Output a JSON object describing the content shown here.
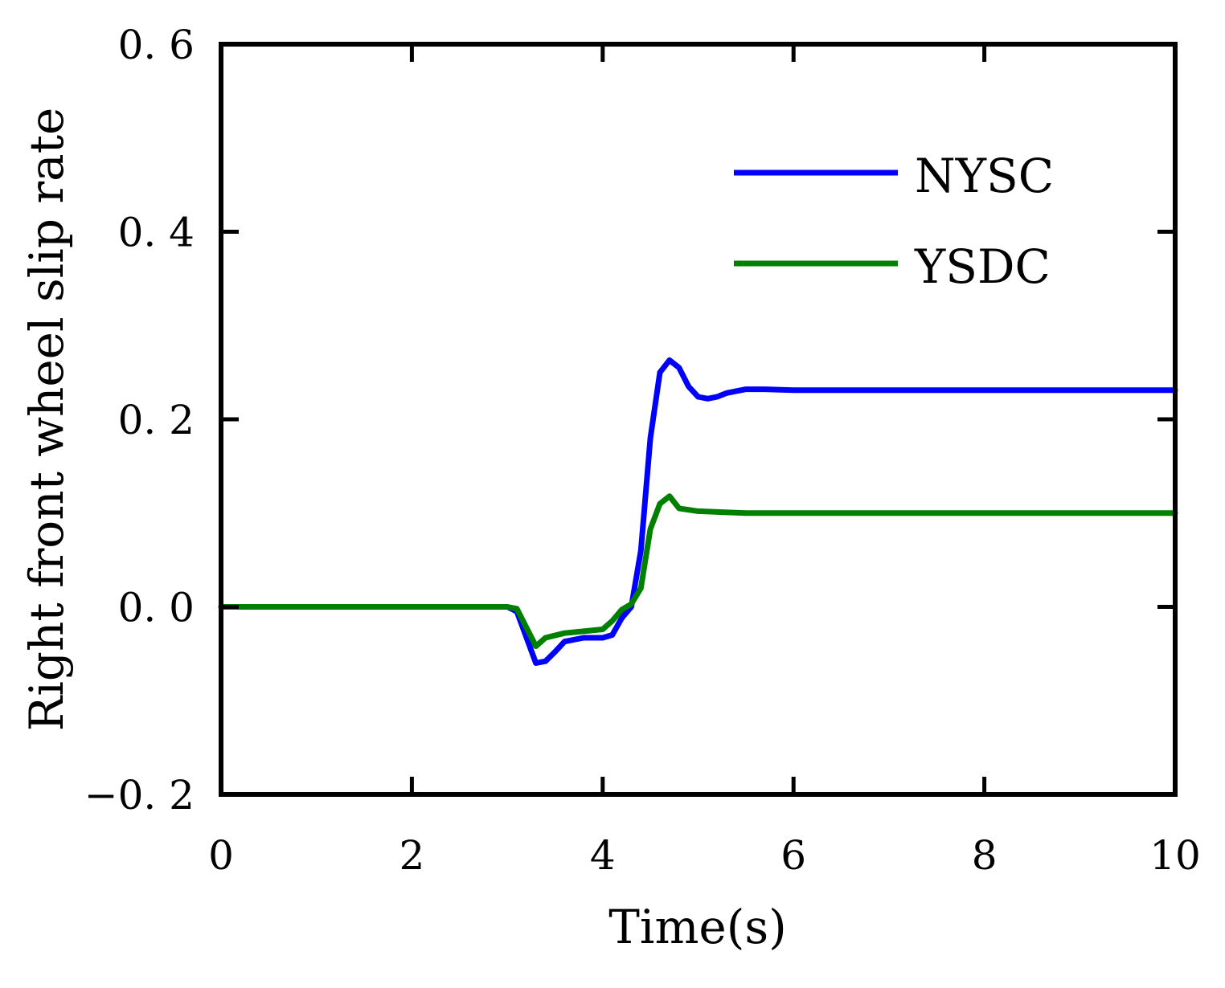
{
  "chart_data": {
    "type": "line",
    "title": "",
    "xlabel": "Time(s)",
    "ylabel": "Right front wheel slip rate",
    "xlim": [
      0,
      10
    ],
    "ylim": [
      -0.2,
      0.6
    ],
    "xticks": [
      0,
      2,
      4,
      6,
      8,
      10
    ],
    "xtick_labels": [
      "0",
      "2",
      "4",
      "6",
      "8",
      "10"
    ],
    "yticks": [
      -0.2,
      0.0,
      0.2,
      0.4,
      0.6
    ],
    "ytick_labels": [
      "−0. 2",
      "0. 0",
      "0. 2",
      "0. 4",
      "0. 6"
    ],
    "grid": false,
    "legend_position": "top-right",
    "series": [
      {
        "name": "NYSC",
        "color": "#0000ff",
        "x": [
          0,
          3.0,
          3.1,
          3.3,
          3.4,
          3.5,
          3.6,
          3.8,
          4.0,
          4.1,
          4.2,
          4.3,
          4.4,
          4.5,
          4.6,
          4.7,
          4.8,
          4.9,
          5.0,
          5.1,
          5.2,
          5.3,
          5.5,
          5.7,
          6.0,
          7.0,
          8.0,
          9.0,
          10.0
        ],
        "y": [
          0.0,
          0.0,
          -0.005,
          -0.06,
          -0.058,
          -0.048,
          -0.037,
          -0.033,
          -0.033,
          -0.03,
          -0.012,
          0.0,
          0.06,
          0.18,
          0.25,
          0.263,
          0.255,
          0.235,
          0.224,
          0.222,
          0.224,
          0.228,
          0.232,
          0.232,
          0.231,
          0.231,
          0.231,
          0.231,
          0.231
        ]
      },
      {
        "name": "YSDC",
        "color": "#008000",
        "x": [
          0,
          3.0,
          3.1,
          3.3,
          3.4,
          3.6,
          3.8,
          4.0,
          4.1,
          4.2,
          4.3,
          4.4,
          4.5,
          4.6,
          4.7,
          4.8,
          5.0,
          5.5,
          6.0,
          7.0,
          8.0,
          9.0,
          10.0
        ],
        "y": [
          0.0,
          0.0,
          -0.002,
          -0.042,
          -0.033,
          -0.028,
          -0.026,
          -0.024,
          -0.015,
          -0.003,
          0.003,
          0.02,
          0.083,
          0.11,
          0.118,
          0.105,
          0.102,
          0.1,
          0.1,
          0.1,
          0.1,
          0.1,
          0.1
        ]
      }
    ]
  }
}
